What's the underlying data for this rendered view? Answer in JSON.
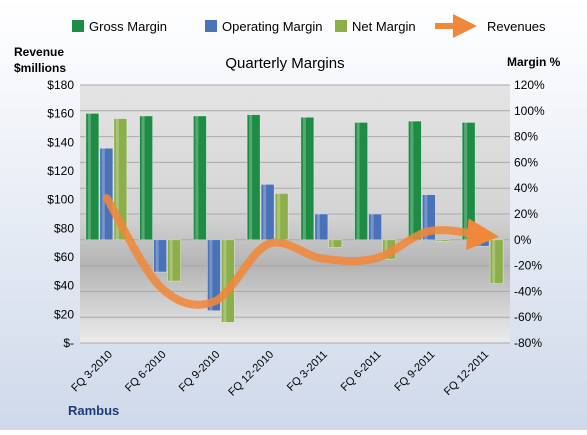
{
  "chart_data": {
    "type": "bar",
    "title": "Quarterly Margins",
    "company": "Rambus",
    "categories": [
      "FQ 3-2010",
      "FQ 6-2010",
      "FQ 9-2010",
      "FQ 12-2010",
      "FQ 3-2011",
      "FQ 6-2011",
      "FQ 9-2011",
      "FQ 12-2011"
    ],
    "y_left": {
      "label_line1": "Revenue",
      "label_line2": "$millions",
      "min": 0,
      "max": 180,
      "step": 20,
      "tick_labels": [
        "$-",
        "$20",
        "$40",
        "$60",
        "$80",
        "$100",
        "$120",
        "$140",
        "$160",
        "$180"
      ]
    },
    "y_right": {
      "label": "Margin %",
      "min": -80,
      "max": 120,
      "step": 20,
      "tick_labels": [
        "-80%",
        "-60%",
        "-40%",
        "-20%",
        "0%",
        "20%",
        "40%",
        "60%",
        "80%",
        "100%",
        "120%"
      ]
    },
    "series": [
      {
        "name": "Gross Margin",
        "kind": "bar",
        "axis": "right",
        "color": "#1E8C45",
        "values": [
          98,
          96,
          96,
          97,
          95,
          91,
          92,
          91
        ]
      },
      {
        "name": "Operating Margin",
        "kind": "bar",
        "axis": "right",
        "color": "#4A72B8",
        "values": [
          71,
          -25,
          -55,
          43,
          20,
          20,
          35,
          -5
        ]
      },
      {
        "name": "Net Margin",
        "kind": "bar",
        "axis": "right",
        "color": "#8CAF4B",
        "values": [
          94,
          -32,
          -64,
          36,
          -6,
          -15,
          0,
          -34
        ]
      },
      {
        "name": "Revenues",
        "kind": "line",
        "axis": "left",
        "color": "#F0883A",
        "values": [
          101,
          39,
          29,
          69,
          59,
          59,
          78,
          75
        ]
      }
    ],
    "legend_position": "top",
    "grid": true
  }
}
